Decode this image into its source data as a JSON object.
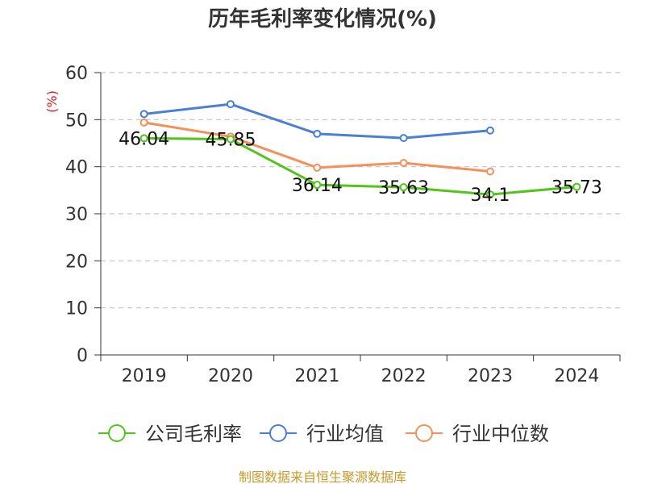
{
  "chart_data": {
    "type": "line",
    "title": "历年毛利率变化情况(%)",
    "ylabel": "(%)",
    "ylim": [
      0,
      60
    ],
    "yticks": [
      0,
      10,
      20,
      30,
      40,
      50,
      60
    ],
    "grid": true,
    "categories": [
      "2019",
      "2020",
      "2021",
      "2022",
      "2023",
      "2024"
    ],
    "series": [
      {
        "name": "公司毛利率",
        "color": "#52c41a",
        "values": [
          46.04,
          45.85,
          36.14,
          35.63,
          34.1,
          35.73
        ],
        "labels": [
          "46.04",
          "45.85",
          "36.14",
          "35.63",
          "34.1",
          "35.73"
        ]
      },
      {
        "name": "行业均值",
        "color": "#4a7fd6",
        "values": [
          51.2,
          53.3,
          47.0,
          46.1,
          47.7,
          null
        ]
      },
      {
        "name": "行业中位数",
        "color": "#f5905a",
        "values": [
          49.4,
          46.4,
          39.8,
          40.8,
          39.0,
          null
        ]
      }
    ],
    "legend": "bottom",
    "source": "制图数据来自恒生聚源数据库",
    "ylabel_color": "#e01818",
    "source_color": "#c8982a"
  }
}
